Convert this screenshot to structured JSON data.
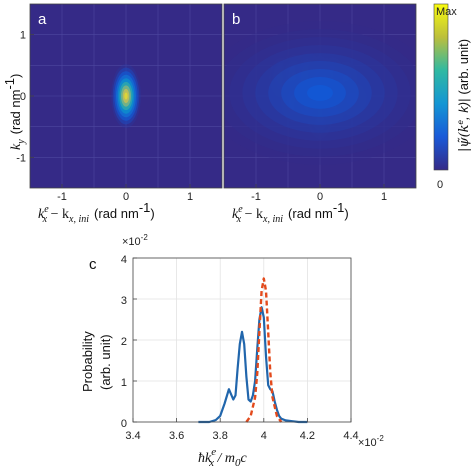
{
  "chart_data": [
    {
      "type": "heatmap",
      "panel_label": "a",
      "x_label_math": "k",
      "x_label_sup": "e",
      "x_label_sub": "x",
      "x_label_minus": " − k",
      "x_label_sub2": "x, ini",
      "x_label_unit": "(rad nm",
      "x_label_unit_sup": "-1",
      "x_label_unit_close": ")",
      "y_label_math": "k",
      "y_label_sub": "y",
      "y_label_unit": "(rad nm",
      "y_label_unit_sup": "-1",
      "y_label_unit_close": ")",
      "x_ticks": [
        "-1",
        "0",
        "1"
      ],
      "y_ticks": [
        "1",
        "0",
        "-1"
      ],
      "xlim": [
        -1.5,
        1.5
      ],
      "ylim": [
        -1.5,
        1.5
      ],
      "blobs": [
        {
          "x": 0.0,
          "y": 0.0,
          "sx": 0.09,
          "sy": 0.2,
          "amp": 1.0
        }
      ]
    },
    {
      "type": "heatmap",
      "panel_label": "b",
      "x_label_math": "k",
      "x_label_sup": "e",
      "x_label_sub": "x",
      "x_label_minus": " − k",
      "x_label_sub2": "x, ini",
      "x_label_unit": "(rad nm",
      "x_label_unit_sup": "-1",
      "x_label_unit_close": ")",
      "x_ticks": [
        "-1",
        "0",
        "1"
      ],
      "xlim": [
        -1.5,
        1.5
      ],
      "ylim": [
        -1.5,
        1.5
      ],
      "blobs": [
        {
          "x": -0.6,
          "y": 0.3,
          "sx": 0.08,
          "sy": 0.14,
          "amp": 0.55
        },
        {
          "x": -0.4,
          "y": 0.32,
          "sx": 0.08,
          "sy": 0.15,
          "amp": 0.7
        },
        {
          "x": -0.2,
          "y": 0.32,
          "sx": 0.08,
          "sy": 0.16,
          "amp": 0.75
        },
        {
          "x": 0.0,
          "y": 0.3,
          "sx": 0.08,
          "sy": 0.15,
          "amp": 0.6
        },
        {
          "x": 0.2,
          "y": 0.3,
          "sx": 0.08,
          "sy": 0.14,
          "amp": 0.5
        },
        {
          "x": 0.4,
          "y": 0.28,
          "sx": 0.08,
          "sy": 0.12,
          "amp": 0.35
        },
        {
          "x": 0.0,
          "y": -0.08,
          "sx": 0.09,
          "sy": 0.24,
          "amp": 0.95
        },
        {
          "x": -0.4,
          "y": -0.1,
          "sx": 0.09,
          "sy": 0.14,
          "amp": 0.45
        },
        {
          "x": -0.2,
          "y": -0.15,
          "sx": 0.08,
          "sy": 0.12,
          "amp": 0.4
        },
        {
          "x": 0.22,
          "y": -0.12,
          "sx": 0.09,
          "sy": 0.13,
          "amp": 0.4
        },
        {
          "x": 0.5,
          "y": -0.05,
          "sx": 0.1,
          "sy": 0.12,
          "amp": 0.22
        },
        {
          "x": 0.0,
          "y": 0.05,
          "sx": 0.7,
          "sy": 0.45,
          "amp": 0.12
        }
      ]
    },
    {
      "type": "colorbar",
      "max_label": "Max",
      "min_label": "0",
      "label": "(arb. unit)",
      "label_math": "|ψ̃(k",
      "label_math_sup": "e",
      "label_math_mid": ", k",
      "label_math_close": ")|"
    },
    {
      "type": "line",
      "panel_label": "c",
      "x_label_math": "ħk",
      "x_label_sup": "e",
      "x_label_sub": "x",
      "x_label_tail": " / m",
      "x_label_sub0": "0",
      "x_label_c": "c",
      "x_exponent": "×10",
      "x_exponent_sup": "-2",
      "y_exponent": "×10",
      "y_exponent_sup": "-2",
      "y_label_line1": "Probability",
      "y_label_line2": "(arb. unit)",
      "xlim": [
        3.4,
        4.4
      ],
      "ylim": [
        0,
        4
      ],
      "x_ticks": [
        "3.4",
        "3.6",
        "3.8",
        "4",
        "4.2",
        "4.4"
      ],
      "y_ticks": [
        "0",
        "1",
        "2",
        "3",
        "4"
      ],
      "series": [
        {
          "style": "solid",
          "color": "#2166ac",
          "x": [
            3.7,
            3.75,
            3.78,
            3.8,
            3.82,
            3.84,
            3.86,
            3.87,
            3.88,
            3.89,
            3.9,
            3.91,
            3.92,
            3.93,
            3.94,
            3.95,
            3.96,
            3.97,
            3.98,
            3.99,
            4.0,
            4.01,
            4.02,
            4.03,
            4.04,
            4.05,
            4.06,
            4.07,
            4.08,
            4.1,
            4.13,
            4.16,
            4.2
          ],
          "y": [
            0.0,
            0.0,
            0.05,
            0.15,
            0.45,
            0.8,
            0.55,
            0.65,
            1.3,
            1.9,
            2.2,
            1.9,
            1.1,
            0.55,
            0.5,
            0.65,
            1.0,
            1.8,
            2.5,
            2.8,
            2.55,
            1.6,
            0.9,
            0.8,
            0.75,
            0.5,
            0.3,
            0.15,
            0.08,
            0.04,
            0.02,
            0.0,
            0.0
          ]
        },
        {
          "style": "dashed",
          "color": "#e34a1c",
          "x": [
            3.92,
            3.94,
            3.96,
            3.97,
            3.98,
            3.99,
            4.0,
            4.01,
            4.02,
            4.03,
            4.04,
            4.06,
            4.08
          ],
          "y": [
            0.0,
            0.15,
            0.6,
            1.2,
            2.2,
            3.2,
            3.5,
            3.2,
            2.2,
            1.2,
            0.6,
            0.15,
            0.0
          ]
        }
      ]
    }
  ]
}
